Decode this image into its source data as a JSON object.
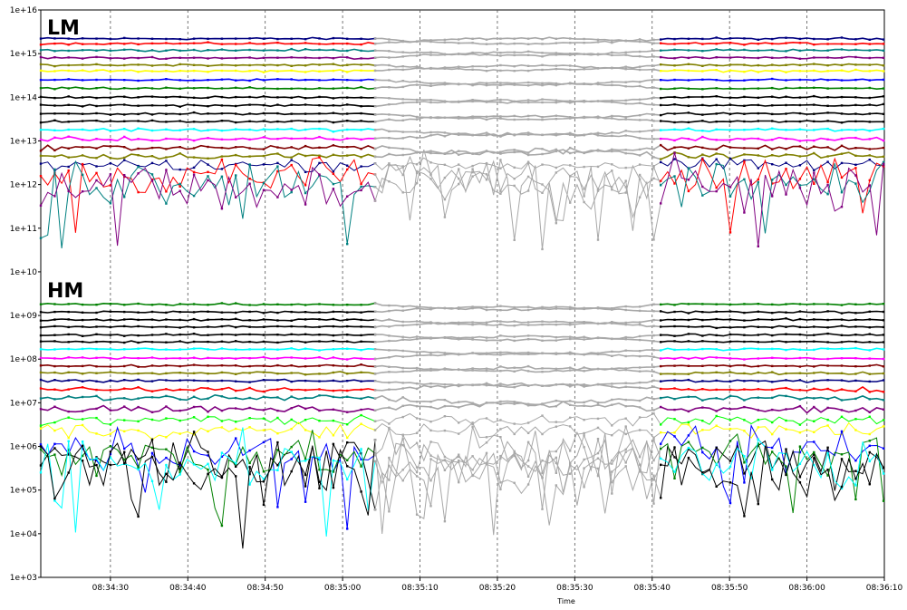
{
  "chart_data": {
    "type": "line",
    "xlabel": "Time",
    "ylabel": "",
    "y_scale": "log",
    "ylim": [
      1000.0,
      1e+16
    ],
    "xlim": [
      "08:34:21",
      "08:36:10"
    ],
    "grid": {
      "vertical": true,
      "horizontal": false
    },
    "y_ticks": [
      "1e+03",
      "1e+04",
      "1e+05",
      "1e+06",
      "1e+07",
      "1e+08",
      "1e+09",
      "1e+10",
      "1e+11",
      "1e+12",
      "1e+13",
      "1e+14",
      "1e+15",
      "1e+16"
    ],
    "x_ticks": [
      "08:34:30",
      "08:34:40",
      "08:34:50",
      "08:35:00",
      "08:35:10",
      "08:35:20",
      "08:35:30",
      "08:35:40",
      "08:35:50",
      "08:36:00",
      "08:36:10"
    ],
    "x_ticks_seconds": [
      9,
      19,
      29,
      39,
      49,
      59,
      69,
      79,
      89,
      99,
      109
    ],
    "gap_seconds": [
      43.5,
      80.5
    ],
    "gap_color": "#a8a8a8",
    "annotations": [
      {
        "text": "LM",
        "y": 5000000000000000.0
      },
      {
        "text": "HM",
        "y": 2500000000.0
      }
    ],
    "lm_series": [
      {
        "color": "#000080",
        "base": 2200000000000000.0,
        "noise": 0.02
      },
      {
        "color": "#ff0000",
        "base": 1700000000000000.0,
        "noise": 0.02
      },
      {
        "color": "#008080",
        "base": 1200000000000000.0,
        "noise": 0.02
      },
      {
        "color": "#800080",
        "base": 800000000000000.0,
        "noise": 0.02
      },
      {
        "color": "#808000",
        "base": 550000000000000.0,
        "noise": 0.02
      },
      {
        "color": "#ffff00",
        "base": 400000000000000.0,
        "noise": 0.02
      },
      {
        "color": "#0000ff",
        "base": 250000000000000.0,
        "noise": 0.02
      },
      {
        "color": "#008000",
        "base": 160000000000000.0,
        "noise": 0.02
      },
      {
        "color": "#000000",
        "base": 100000000000000.0,
        "noise": 0.02
      },
      {
        "color": "#000000",
        "base": 65000000000000.0,
        "noise": 0.02
      },
      {
        "color": "#000000",
        "base": 42000000000000.0,
        "noise": 0.02
      },
      {
        "color": "#000000",
        "base": 28000000000000.0,
        "noise": 0.02
      },
      {
        "color": "#00ffff",
        "base": 18000000000000.0,
        "noise": 0.03
      },
      {
        "color": "#ff00ff",
        "base": 11000000000000.0,
        "noise": 0.04
      },
      {
        "color": "#800000",
        "base": 7000000000000.0,
        "noise": 0.05
      },
      {
        "color": "#808000",
        "base": 4500000000000.0,
        "noise": 0.06
      },
      {
        "color": "#000080",
        "base": 2800000000000.0,
        "noise": 0.12
      },
      {
        "color": "#ff0000",
        "base": 1600000000000.0,
        "noise": 0.35
      },
      {
        "color": "#008080",
        "base": 1200000000000.0,
        "noise": 0.45
      },
      {
        "color": "#800080",
        "base": 800000000000.0,
        "noise": 0.55
      }
    ],
    "hm_series": [
      {
        "color": "#008000",
        "base": 1800000000.0,
        "noise": 0.02
      },
      {
        "color": "#000000",
        "base": 1200000000.0,
        "noise": 0.02
      },
      {
        "color": "#000000",
        "base": 800000000.0,
        "noise": 0.02
      },
      {
        "color": "#000000",
        "base": 550000000.0,
        "noise": 0.02
      },
      {
        "color": "#000000",
        "base": 360000000.0,
        "noise": 0.02
      },
      {
        "color": "#000000",
        "base": 250000000.0,
        "noise": 0.02
      },
      {
        "color": "#00ffff",
        "base": 170000000.0,
        "noise": 0.02
      },
      {
        "color": "#ff00ff",
        "base": 105000000.0,
        "noise": 0.02
      },
      {
        "color": "#800000",
        "base": 70000000.0,
        "noise": 0.02
      },
      {
        "color": "#808000",
        "base": 48000000.0,
        "noise": 0.03
      },
      {
        "color": "#000080",
        "base": 32000000.0,
        "noise": 0.03
      },
      {
        "color": "#ff0000",
        "base": 20000000.0,
        "noise": 0.04
      },
      {
        "color": "#008080",
        "base": 13000000.0,
        "noise": 0.05
      },
      {
        "color": "#800080",
        "base": 7000000.0,
        "noise": 0.07
      },
      {
        "color": "#00ff00",
        "base": 4000000.0,
        "noise": 0.1
      },
      {
        "color": "#ffff00",
        "base": 2300000.0,
        "noise": 0.15
      },
      {
        "color": "#0000ff",
        "base": 800000.0,
        "noise": 0.45
      },
      {
        "color": "#000000",
        "base": 500000.0,
        "noise": 0.5
      },
      {
        "color": "#008000",
        "base": 600000.0,
        "noise": 0.45
      },
      {
        "color": "#00ffff",
        "base": 400000.0,
        "noise": 0.5
      },
      {
        "color": "#000000",
        "base": 300000.0,
        "noise": 0.55
      }
    ]
  }
}
